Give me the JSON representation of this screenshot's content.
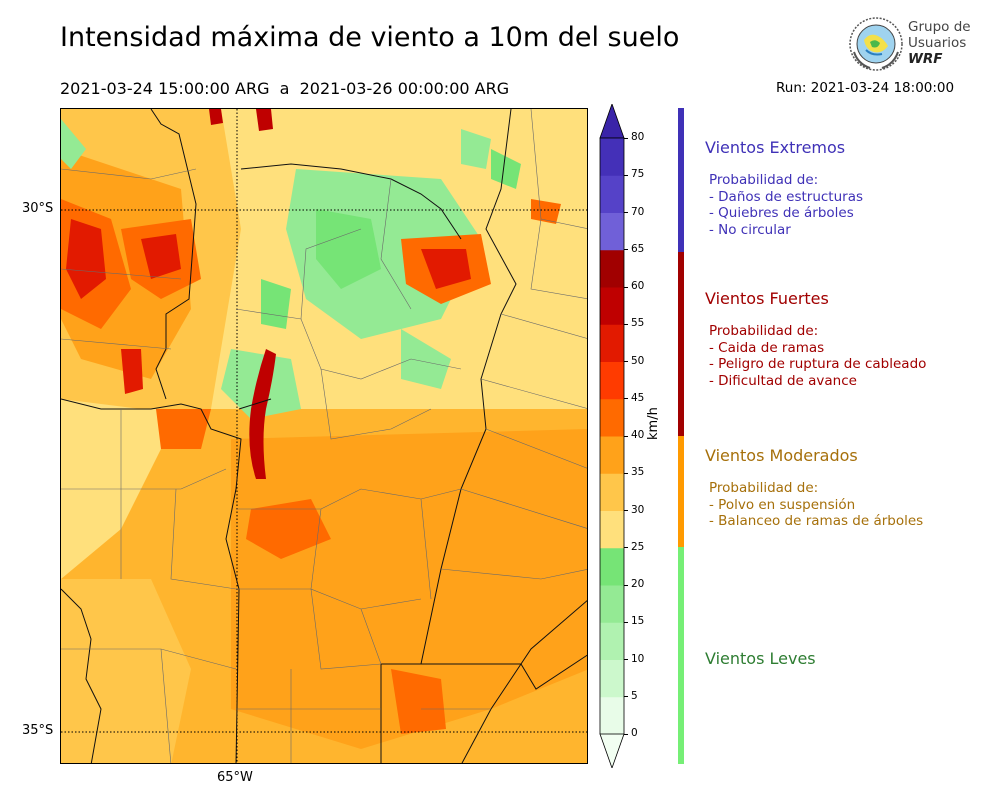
{
  "header": {
    "title": "Intensidad máxima de viento a 10m del suelo",
    "period": "2021-03-24 15:00:00 ARG  a  2021-03-26 00:00:00 ARG",
    "run": "Run: 2021-03-24 18:00:00"
  },
  "logo": {
    "line1": "Grupo de",
    "line2": "Usuarios",
    "line3": "WRF"
  },
  "map": {
    "lat_labels": [
      "30°S",
      "35°S"
    ],
    "lon_labels": [
      "65°W"
    ]
  },
  "colorbar": {
    "unit": "km/h",
    "levels": [
      0,
      5,
      10,
      15,
      20,
      25,
      30,
      35,
      40,
      45,
      50,
      55,
      60,
      65,
      70,
      75,
      80
    ],
    "tick_labels": [
      "0",
      "5",
      "10",
      "15",
      "20",
      "25",
      "30",
      "35",
      "40",
      "45",
      "50",
      "55",
      "60",
      "65",
      "70",
      "75",
      "80"
    ],
    "colors": [
      "#e8fce8",
      "#ccf8cc",
      "#b0f2b0",
      "#94ea94",
      "#76e476",
      "#ffe07c",
      "#ffc64a",
      "#ffa21a",
      "#ff6a00",
      "#ff3b00",
      "#e21a00",
      "#bf0000",
      "#a10000",
      "#7060d8",
      "#5542c8",
      "#4430b8"
    ],
    "under_color": "#f2fff2",
    "over_color": "#3a24a8"
  },
  "legend": {
    "categories": [
      {
        "title": "Vientos Extremos",
        "bar_color": "#3f31b7",
        "text_color": "#3f31b7",
        "desc": [
          "Probabilidad de:",
          "- Daños de estructuras",
          "- Quiebres de árboles",
          "- No circular"
        ]
      },
      {
        "title": "Vientos Fuertes",
        "bar_color": "#a10000",
        "text_color": "#a10000",
        "desc": [
          "Probabilidad de:",
          "- Caida de ramas",
          "- Peligro de ruptura de cableado",
          "- Dificultad de avance"
        ]
      },
      {
        "title": "Vientos Moderados",
        "bar_color": "#ff9a00",
        "text_color": "#a6700b",
        "desc": [
          "Probabilidad de:",
          "- Polvo en suspensión",
          "- Balanceo de ramas de árboles"
        ]
      },
      {
        "title": "Vientos Leves",
        "bar_color": "#76ef76",
        "text_color": "#2e7d32",
        "desc": []
      }
    ]
  }
}
